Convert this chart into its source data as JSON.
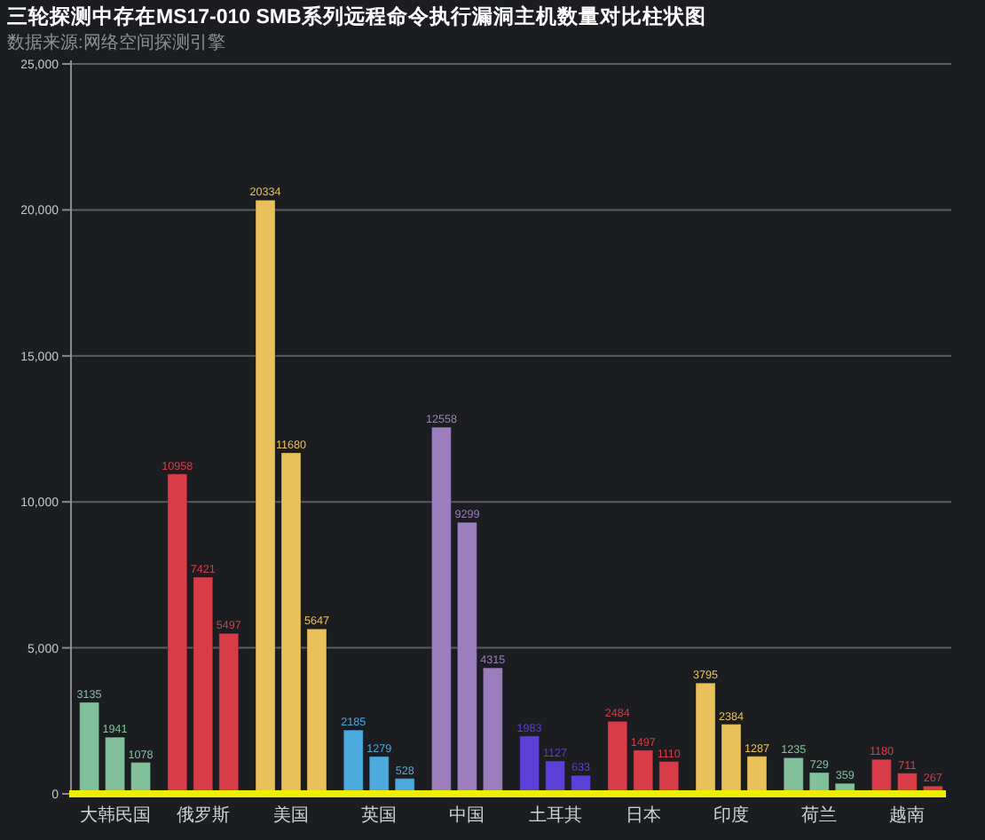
{
  "chart_data": {
    "type": "bar",
    "title": "三轮探测中存在MS17-010 SMB系列远程命令执行漏洞主机数量对比柱状图",
    "subtitle": "数据来源:网络空间探测引擎",
    "categories": [
      "大韩民国",
      "俄罗斯",
      "美国",
      "英国",
      "中国",
      "土耳其",
      "日本",
      "印度",
      "荷兰",
      "越南"
    ],
    "series": [
      {
        "colors": [
          "#82c09c",
          "#d83c49",
          "#e9c15a",
          "#4ba9dd",
          "#9c7ebf",
          "#5b3fd6",
          "#d83c49",
          "#e9c15a",
          "#82c09c",
          "#d83c49"
        ],
        "values": [
          3135,
          10958,
          20334,
          2185,
          12558,
          1983,
          2484,
          3795,
          1235,
          1180
        ]
      },
      {
        "colors": [
          "#82c09c",
          "#d83c49",
          "#e9c15a",
          "#4ba9dd",
          "#9c7ebf",
          "#5b3fd6",
          "#d83c49",
          "#e9c15a",
          "#82c09c",
          "#d83c49"
        ],
        "values": [
          1941,
          7421,
          11680,
          1279,
          9299,
          1127,
          1497,
          2384,
          729,
          711
        ]
      },
      {
        "colors": [
          "#82c09c",
          "#d83c49",
          "#e9c15a",
          "#4ba9dd",
          "#9c7ebf",
          "#5b3fd6",
          "#d83c49",
          "#e9c15a",
          "#82c09c",
          "#d83c49"
        ],
        "values": [
          1078,
          5497,
          5647,
          528,
          4315,
          633,
          1110,
          1287,
          359,
          267
        ]
      }
    ],
    "ylim": [
      0,
      25000
    ],
    "yticks": [
      0,
      {
        "value": 5000,
        "label": "5,000"
      },
      {
        "value": 10000,
        "label": "10,000"
      },
      {
        "value": 15000,
        "label": "15,000"
      },
      {
        "value": 20000,
        "label": "20,000"
      },
      {
        "value": 25000,
        "label": "25,000"
      }
    ],
    "grid": "y",
    "data_labels": true
  }
}
